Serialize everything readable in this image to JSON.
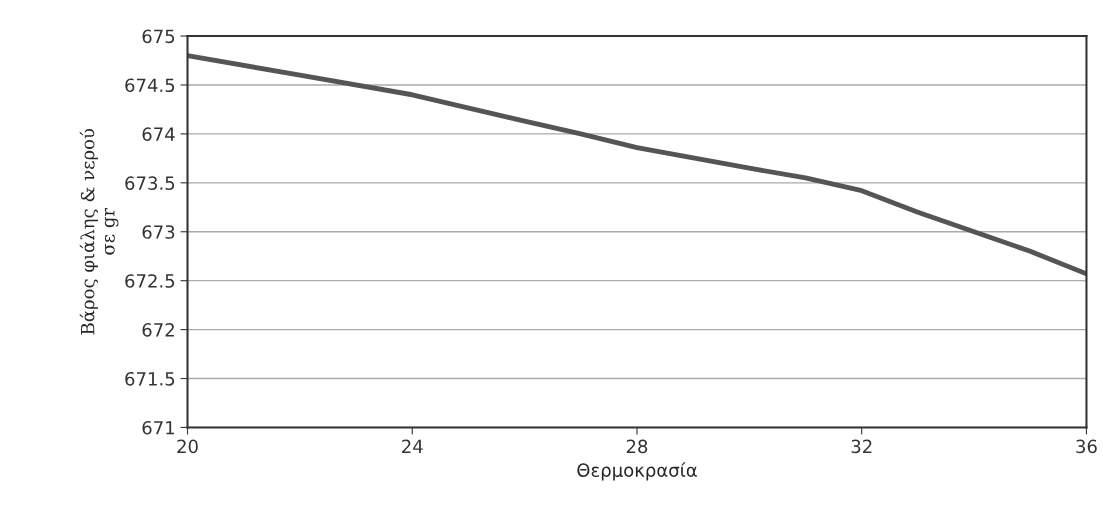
{
  "chart_data": {
    "type": "line",
    "xlabel": "Θερμοκρασία",
    "ylabel": "Βάρος φιάλης & νερού\nσε gr",
    "x": [
      20,
      22,
      24,
      26,
      27,
      28,
      30,
      31,
      32,
      33,
      34,
      35,
      36
    ],
    "series": [
      {
        "color": "#555555",
        "values": [
          674.8,
          674.6,
          674.4,
          674.13,
          674.0,
          673.86,
          673.65,
          673.55,
          673.42,
          673.2,
          673.0,
          672.8,
          672.57
        ]
      }
    ],
    "xlim": [
      20,
      36
    ],
    "xticks": [
      20,
      24,
      28,
      32,
      36
    ],
    "ylim": [
      671,
      675
    ],
    "yticks": [
      671,
      671.5,
      672,
      672.5,
      673,
      673.5,
      674,
      674.5,
      675
    ],
    "grid": "y",
    "marker": "none",
    "line_style": "solid"
  }
}
